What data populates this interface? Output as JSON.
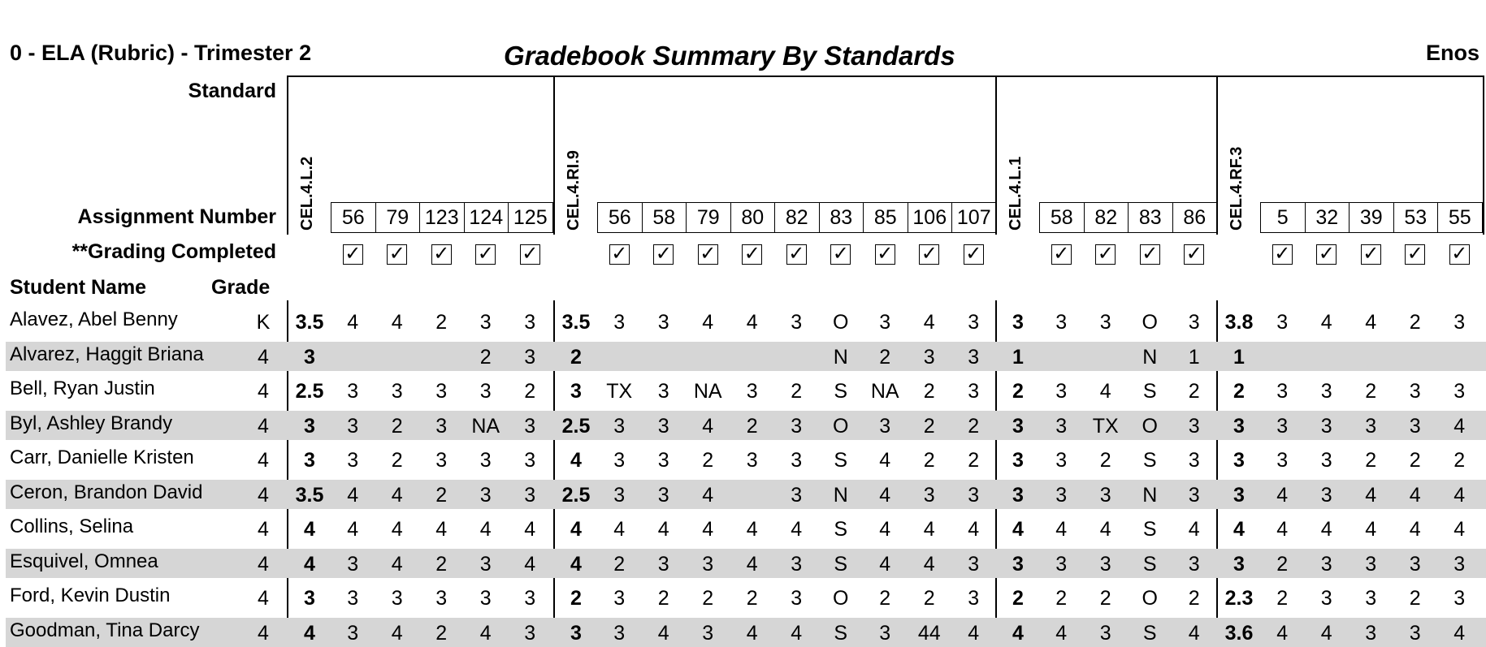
{
  "header": {
    "class_title": "0 - ELA (Rubric) - Trimester 2",
    "report_title": "Gradebook Summary By Standards",
    "teacher": "Enos"
  },
  "labels": {
    "standard": "Standard",
    "assignment_number": "Assignment Number",
    "grading_completed": "**Grading Completed",
    "student_name": "Student Name",
    "grade": "Grade"
  },
  "standards": [
    {
      "code": "CEL.4.L.2",
      "assignments": [
        "56",
        "79",
        "123",
        "124",
        "125"
      ]
    },
    {
      "code": "CEL.4.RI.9",
      "assignments": [
        "56",
        "58",
        "79",
        "80",
        "82",
        "83",
        "85",
        "106",
        "107"
      ]
    },
    {
      "code": "CEL.4.L.1",
      "assignments": [
        "58",
        "82",
        "83",
        "86"
      ]
    },
    {
      "code": "CEL.4.RF.3",
      "assignments": [
        "5",
        "32",
        "39",
        "53",
        "55"
      ]
    }
  ],
  "check_mark": "✓",
  "students": [
    {
      "name": "Alavez, Abel Benny",
      "grade": "K",
      "scores": [
        [
          "3.5",
          "4",
          "4",
          "2",
          "3",
          "3"
        ],
        [
          "3.5",
          "3",
          "3",
          "4",
          "4",
          "3",
          "O",
          "3",
          "4",
          "3"
        ],
        [
          "3",
          "3",
          "3",
          "O",
          "3"
        ],
        [
          "3.8",
          "3",
          "4",
          "4",
          "2",
          "3"
        ]
      ]
    },
    {
      "name": "Alvarez, Haggit Briana",
      "grade": "4",
      "scores": [
        [
          "3",
          "",
          "",
          "",
          "2",
          "3"
        ],
        [
          "2",
          "",
          "",
          "",
          "",
          "",
          "N",
          "2",
          "3",
          "3"
        ],
        [
          "1",
          "",
          "",
          "N",
          "1"
        ],
        [
          "1",
          "",
          "",
          "",
          "",
          ""
        ]
      ]
    },
    {
      "name": "Bell, Ryan Justin",
      "grade": "4",
      "scores": [
        [
          "2.5",
          "3",
          "3",
          "3",
          "3",
          "2"
        ],
        [
          "3",
          "TX",
          "3",
          "NA",
          "3",
          "2",
          "S",
          "NA",
          "2",
          "3"
        ],
        [
          "2",
          "3",
          "4",
          "S",
          "2"
        ],
        [
          "2",
          "3",
          "3",
          "2",
          "3",
          "3"
        ]
      ]
    },
    {
      "name": "Byl, Ashley Brandy",
      "grade": "4",
      "scores": [
        [
          "3",
          "3",
          "2",
          "3",
          "NA",
          "3"
        ],
        [
          "2.5",
          "3",
          "3",
          "4",
          "2",
          "3",
          "O",
          "3",
          "2",
          "2"
        ],
        [
          "3",
          "3",
          "TX",
          "O",
          "3"
        ],
        [
          "3",
          "3",
          "3",
          "3",
          "3",
          "4"
        ]
      ]
    },
    {
      "name": "Carr, Danielle Kristen",
      "grade": "4",
      "scores": [
        [
          "3",
          "3",
          "2",
          "3",
          "3",
          "3"
        ],
        [
          "4",
          "3",
          "3",
          "2",
          "3",
          "3",
          "S",
          "4",
          "2",
          "2"
        ],
        [
          "3",
          "3",
          "2",
          "S",
          "3"
        ],
        [
          "3",
          "3",
          "3",
          "2",
          "2",
          "2"
        ]
      ]
    },
    {
      "name": "Ceron, Brandon David",
      "grade": "4",
      "scores": [
        [
          "3.5",
          "4",
          "4",
          "2",
          "3",
          "3"
        ],
        [
          "2.5",
          "3",
          "3",
          "4",
          "",
          "3",
          "N",
          "4",
          "3",
          "3"
        ],
        [
          "3",
          "3",
          "3",
          "N",
          "3"
        ],
        [
          "3",
          "4",
          "3",
          "4",
          "4",
          "4"
        ]
      ]
    },
    {
      "name": "Collins, Selina",
      "grade": "4",
      "scores": [
        [
          "4",
          "4",
          "4",
          "4",
          "4",
          "4"
        ],
        [
          "4",
          "4",
          "4",
          "4",
          "4",
          "4",
          "S",
          "4",
          "4",
          "4"
        ],
        [
          "4",
          "4",
          "4",
          "S",
          "4"
        ],
        [
          "4",
          "4",
          "4",
          "4",
          "4",
          "4"
        ]
      ]
    },
    {
      "name": "Esquivel, Omnea",
      "grade": "4",
      "scores": [
        [
          "4",
          "3",
          "4",
          "2",
          "3",
          "4"
        ],
        [
          "4",
          "2",
          "3",
          "3",
          "4",
          "3",
          "S",
          "4",
          "4",
          "3"
        ],
        [
          "3",
          "3",
          "3",
          "S",
          "3"
        ],
        [
          "3",
          "2",
          "3",
          "3",
          "3",
          "3"
        ]
      ]
    },
    {
      "name": "Ford, Kevin Dustin",
      "grade": "4",
      "scores": [
        [
          "3",
          "3",
          "3",
          "3",
          "3",
          "3"
        ],
        [
          "2",
          "3",
          "2",
          "2",
          "2",
          "3",
          "O",
          "2",
          "2",
          "3"
        ],
        [
          "2",
          "2",
          "2",
          "O",
          "2"
        ],
        [
          "2.3",
          "2",
          "3",
          "3",
          "2",
          "3"
        ]
      ]
    },
    {
      "name": "Goodman, Tina Darcy",
      "grade": "4",
      "scores": [
        [
          "4",
          "3",
          "4",
          "2",
          "4",
          "3"
        ],
        [
          "3",
          "3",
          "4",
          "3",
          "4",
          "4",
          "S",
          "3",
          "44",
          "4"
        ],
        [
          "4",
          "4",
          "3",
          "S",
          "4"
        ],
        [
          "3.6",
          "4",
          "4",
          "3",
          "3",
          "4"
        ]
      ]
    }
  ]
}
